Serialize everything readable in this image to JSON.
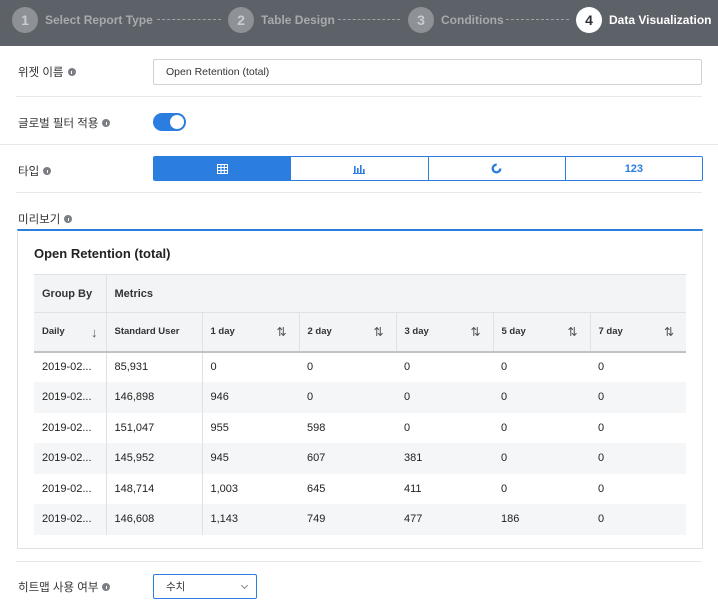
{
  "stepper": {
    "steps": [
      {
        "num": "1",
        "label": "Select Report Type"
      },
      {
        "num": "2",
        "label": "Table Design"
      },
      {
        "num": "3",
        "label": "Conditions"
      },
      {
        "num": "4",
        "label": "Data Visualization"
      }
    ],
    "active_step": 4
  },
  "form": {
    "widget_name_label": "위젯 이름",
    "widget_name_value": "Open Retention (total)",
    "global_filter_label": "글로벌 필터 적용",
    "global_filter_on": true,
    "type_label": "타입",
    "type_options": [
      {
        "icon": "table-icon",
        "label": ""
      },
      {
        "icon": "bar-chart-icon",
        "label": ""
      },
      {
        "icon": "donut-chart-icon",
        "label": ""
      },
      {
        "icon": "number-icon",
        "label": "123"
      }
    ],
    "type_selected": 0,
    "preview_label": "미리보기",
    "heatmap_label": "히트맵 사용 여부",
    "heatmap_value": "수치"
  },
  "preview": {
    "title": "Open Retention (total)",
    "group_by_header": "Group By",
    "metrics_header": "Metrics",
    "columns": [
      "Daily",
      "Standard User",
      "1 day",
      "2 day",
      "3 day",
      "5 day",
      "7 day"
    ],
    "rows": [
      [
        "2019-02...",
        "85,931",
        "0",
        "0",
        "0",
        "0",
        "0"
      ],
      [
        "2019-02...",
        "146,898",
        "946",
        "0",
        "0",
        "0",
        "0"
      ],
      [
        "2019-02...",
        "151,047",
        "955",
        "598",
        "0",
        "0",
        "0"
      ],
      [
        "2019-02...",
        "145,952",
        "945",
        "607",
        "381",
        "0",
        "0"
      ],
      [
        "2019-02...",
        "148,714",
        "1,003",
        "645",
        "411",
        "0",
        "0"
      ],
      [
        "2019-02...",
        "146,608",
        "1,143",
        "749",
        "477",
        "186",
        "0"
      ]
    ]
  },
  "colors": {
    "accent": "#2b7de0",
    "stepper_bg": "#5d6268"
  }
}
